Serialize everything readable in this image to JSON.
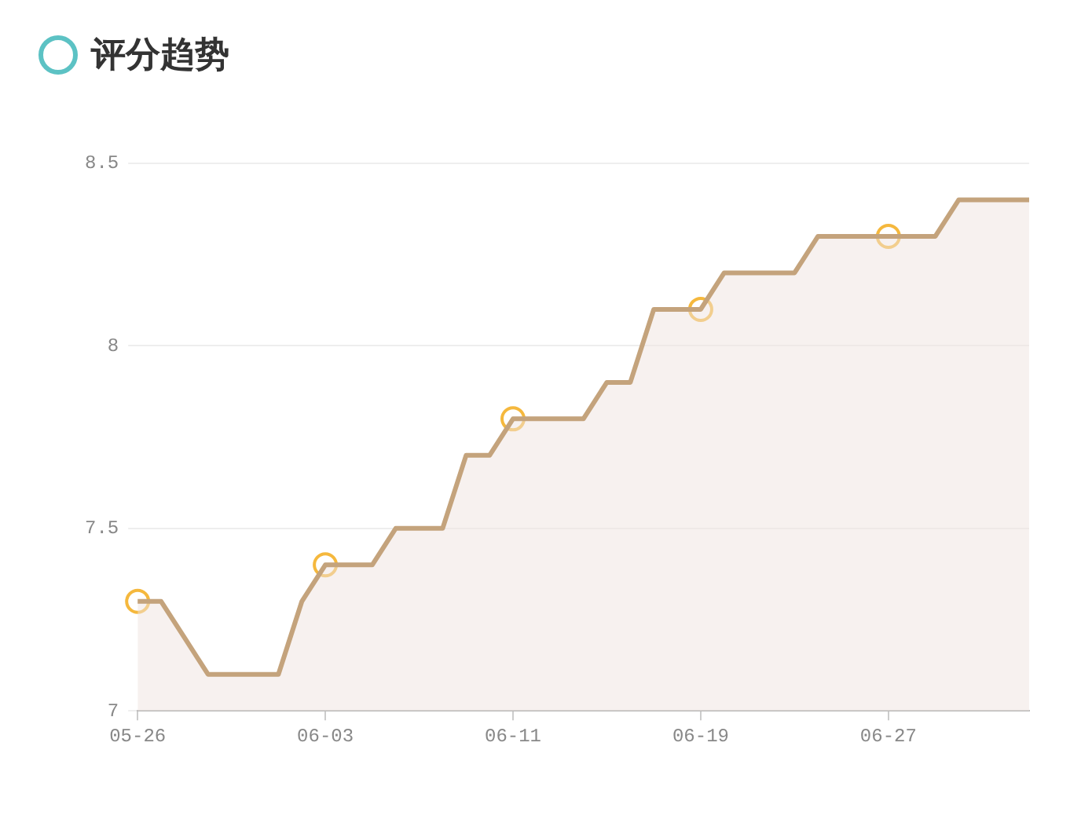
{
  "chart_data": {
    "type": "area",
    "title": "评分趋势",
    "categories": [
      "05-26",
      null,
      null,
      null,
      null,
      null,
      null,
      null,
      "06-03",
      null,
      null,
      null,
      null,
      null,
      null,
      null,
      "06-11",
      null,
      null,
      null,
      null,
      null,
      null,
      null,
      "06-19",
      null,
      null,
      null,
      null,
      null,
      null,
      null,
      "06-27",
      null,
      null,
      null,
      null,
      null,
      null
    ],
    "series": [
      {
        "color": "#c4a37c",
        "marker": "none",
        "values": [
          7.3,
          7.3,
          7.2,
          7.1,
          7.1,
          7.1,
          7.1,
          7.3,
          7.4,
          7.4,
          7.4,
          7.5,
          7.5,
          7.5,
          7.7,
          7.7,
          7.8,
          7.8,
          7.8,
          7.8,
          7.9,
          7.9,
          8.1,
          8.1,
          8.1,
          8.2,
          8.2,
          8.2,
          8.2,
          8.3,
          8.3,
          8.3,
          8.3,
          8.3,
          8.3,
          8.4,
          8.4,
          8.4,
          8.4
        ]
      },
      {
        "type": "scatter",
        "color": "#f5b83d",
        "marker": "circle",
        "x": [
          "05-26",
          "06-03",
          "06-11",
          "06-19",
          "06-27"
        ],
        "values": [
          7.3,
          7.4,
          7.8,
          8.1,
          8.3
        ]
      }
    ],
    "ylim": [
      7,
      8.5
    ],
    "yticks": [
      7,
      7.5,
      8,
      8.5
    ],
    "grid": "y",
    "legend": false
  }
}
